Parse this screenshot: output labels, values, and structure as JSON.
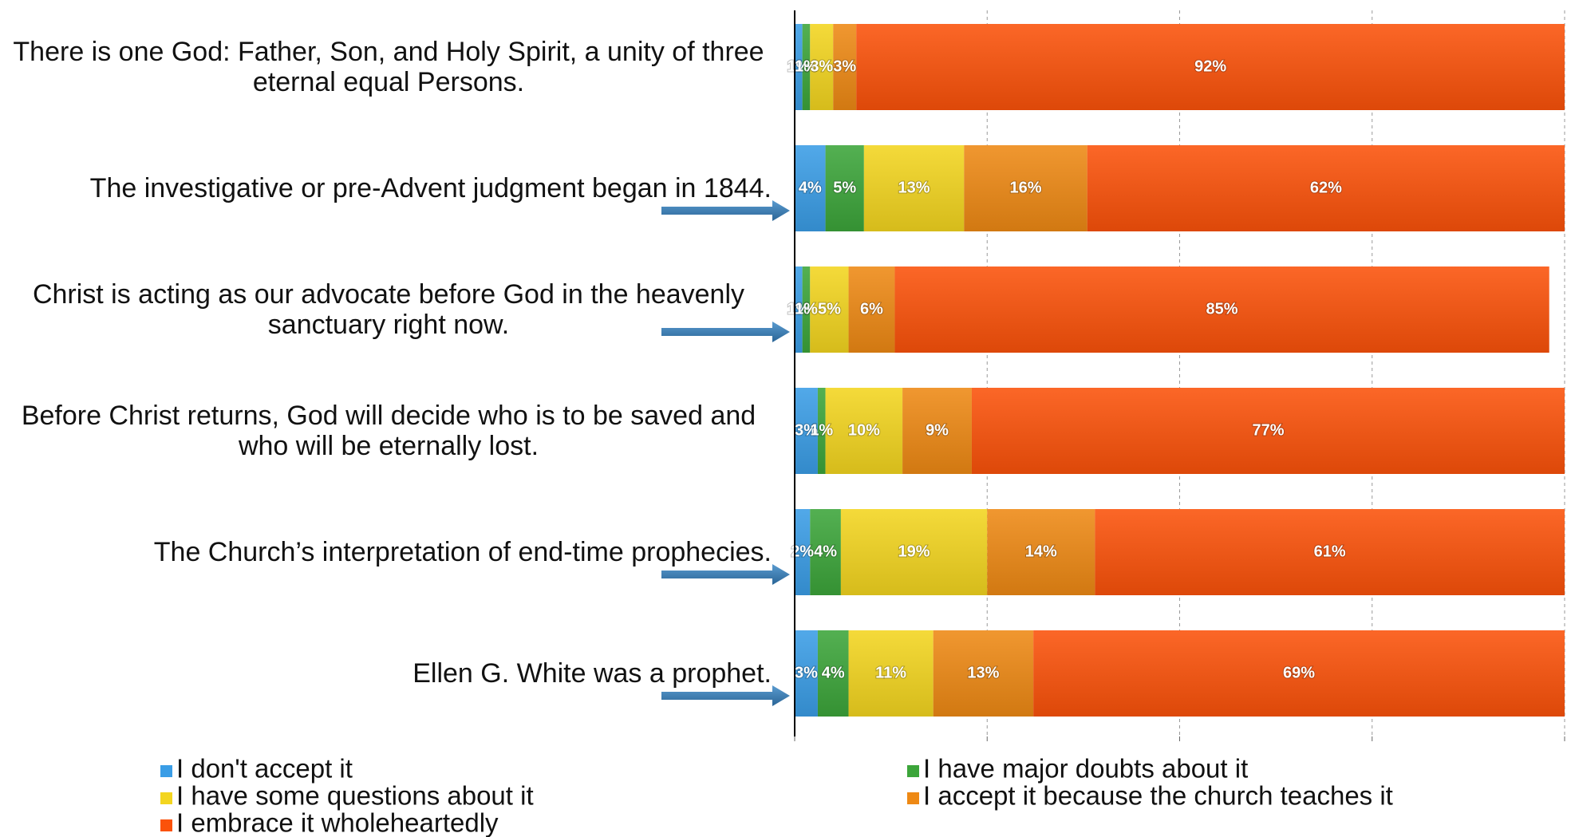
{
  "chart_data": {
    "type": "stacked-bar-horizontal",
    "categories": [
      "There is one God: Father, Son, and Holy Spirit, a unity of three eternal equal Persons.",
      "The investigative or pre-Advent judgment began in 1844.",
      "Christ is acting as our advocate before God in the heavenly sanctuary right now.",
      "Before Christ returns, God will decide who is to be saved and who will be eternally lost.",
      "The Church’s interpretation of end-time prophecies.",
      "Ellen G. White was a prophet."
    ],
    "series": [
      {
        "name": "I don't accept it",
        "color": "#3a9de6",
        "values": [
          1,
          4,
          1,
          3,
          2,
          3
        ],
        "value_labels": [
          "1%",
          "4%",
          "1%",
          "3%",
          "2%",
          "3%"
        ]
      },
      {
        "name": "I have major doubts about it",
        "color": "#3ca53a",
        "values": [
          1,
          5,
          1,
          1,
          4,
          4
        ],
        "value_labels": [
          "1%",
          "5%",
          "1%",
          "1%",
          "4%",
          "4%"
        ]
      },
      {
        "name": "I have some questions about it",
        "color": "#f3d51f",
        "values": [
          3,
          13,
          5,
          10,
          19,
          11
        ],
        "value_labels": [
          "3%",
          "13%",
          "5%",
          "10%",
          "19%",
          "11%"
        ]
      },
      {
        "name": "I accept it because the church teaches it",
        "color": "#ee8914",
        "values": [
          3,
          16,
          6,
          9,
          14,
          13
        ],
        "value_labels": [
          "3%",
          "16%",
          "6%",
          "9%",
          "14%",
          "13%"
        ]
      },
      {
        "name": "I embrace it wholeheartedly",
        "color": "#fb520a",
        "values": [
          92,
          62,
          85,
          77,
          61,
          69
        ],
        "value_labels": [
          "92%",
          "62%",
          "85%",
          "77%",
          "61%",
          "69%"
        ]
      }
    ],
    "xlim": [
      0,
      100
    ],
    "xticks": [
      0,
      25,
      50,
      75,
      100
    ],
    "grid": true
  }
}
